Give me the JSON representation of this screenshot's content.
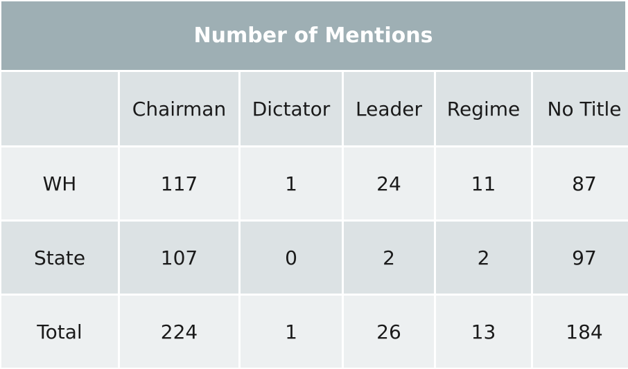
{
  "title": "Number of Mentions",
  "columns": [
    "",
    "Chairman",
    "Dictator",
    "Leader",
    "Regime",
    "No Title"
  ],
  "rows": [
    {
      "label": "WH",
      "values": [
        "117",
        "1",
        "24",
        "11",
        "87"
      ]
    },
    {
      "label": "State",
      "values": [
        "107",
        "0",
        "2",
        "2",
        "97"
      ]
    },
    {
      "label": "Total",
      "values": [
        "224",
        "1",
        "26",
        "13",
        "184"
      ]
    }
  ],
  "colors": {
    "title_bg": "#9eafb4",
    "header_bg": "#dce2e4",
    "row_light": "#edf0f1",
    "row_dark": "#dce2e4"
  }
}
